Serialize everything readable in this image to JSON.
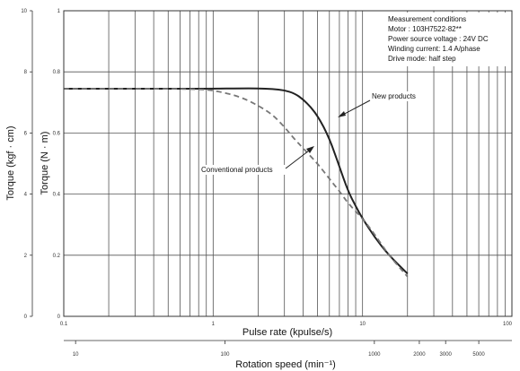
{
  "chart_data": {
    "type": "line",
    "x_scale": "log",
    "xlim": [
      0.1,
      100
    ],
    "xlabel": "Pulse rate (kpulse/s)",
    "x_ticks": [
      "0.1",
      "1",
      "10",
      "100"
    ],
    "x2label": "Rotation speed (min⁻¹)",
    "x2_ticks": [
      "10",
      "100",
      "1000",
      "2000",
      "3000",
      "5000"
    ],
    "ylabel": "Torque (N · m)",
    "ylim": [
      0,
      1.0
    ],
    "y_ticks": [
      "0",
      "0.2",
      "0.4",
      "0.6",
      "0.8",
      "1"
    ],
    "y2label": "Torque (kgf · cm)",
    "y2_ticks": [
      "0",
      "2",
      "4",
      "6",
      "8",
      "10"
    ],
    "grid": true,
    "conditions": [
      "Measurement conditions",
      "Motor : 103H7522-82**",
      "Power source voltage : 24V DC",
      "Winding current: 1.4 A/phase",
      "Drive mode: half step"
    ],
    "series": [
      {
        "name": "New products",
        "style": "solid",
        "color": "#222222",
        "x": [
          0.1,
          0.5,
          1,
          1.5,
          2,
          2.5,
          3,
          3.5,
          4,
          4.5,
          5,
          5.5,
          6,
          6.5,
          7,
          8,
          9,
          10,
          12,
          15,
          20
        ],
        "y": [
          0.745,
          0.745,
          0.745,
          0.746,
          0.746,
          0.744,
          0.74,
          0.73,
          0.71,
          0.685,
          0.655,
          0.62,
          0.58,
          0.535,
          0.49,
          0.41,
          0.36,
          0.32,
          0.26,
          0.2,
          0.14
        ]
      },
      {
        "name": "Conventional products",
        "style": "dashed",
        "color": "#777777",
        "x": [
          0.1,
          0.5,
          0.8,
          1,
          1.5,
          2,
          2.5,
          3,
          3.5,
          4,
          5,
          6,
          7,
          8,
          10,
          12,
          15,
          20
        ],
        "y": [
          0.745,
          0.745,
          0.743,
          0.74,
          0.72,
          0.69,
          0.66,
          0.62,
          0.58,
          0.55,
          0.5,
          0.45,
          0.41,
          0.37,
          0.32,
          0.27,
          0.2,
          0.13
        ]
      }
    ],
    "annotations": [
      "New products",
      "Conventional products"
    ]
  }
}
